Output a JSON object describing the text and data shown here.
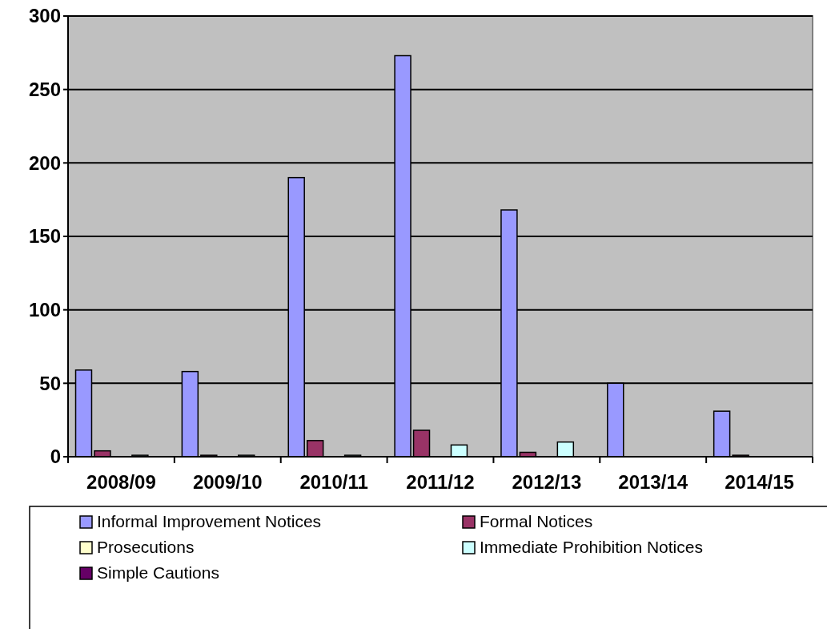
{
  "chart_data": {
    "type": "bar",
    "categories": [
      "2008/09",
      "2009/10",
      "2010/11",
      "2011/12",
      "2012/13",
      "2013/14",
      "2014/15"
    ],
    "series": [
      {
        "name": "Informal Improvement Notices",
        "color": "#9999ff",
        "values": [
          59,
          58,
          190,
          273,
          168,
          50,
          31
        ]
      },
      {
        "name": "Formal Notices",
        "color": "#993366",
        "values": [
          4,
          1,
          11,
          18,
          3,
          0,
          1
        ]
      },
      {
        "name": "Prosecutions",
        "color": "#ffffcc",
        "values": [
          0,
          0,
          0,
          0,
          0,
          0,
          0
        ]
      },
      {
        "name": "Immediate Prohibition Notices",
        "color": "#ccffff",
        "values": [
          1,
          1,
          1,
          8,
          10,
          0,
          0
        ]
      },
      {
        "name": "Simple Cautions",
        "color": "#660066",
        "values": [
          0,
          0,
          0,
          0,
          0,
          0,
          0
        ]
      }
    ],
    "ylim": [
      0,
      300
    ],
    "yticks": [
      0,
      50,
      100,
      150,
      200,
      250,
      300
    ],
    "grid": "y",
    "legend": "bottom"
  }
}
